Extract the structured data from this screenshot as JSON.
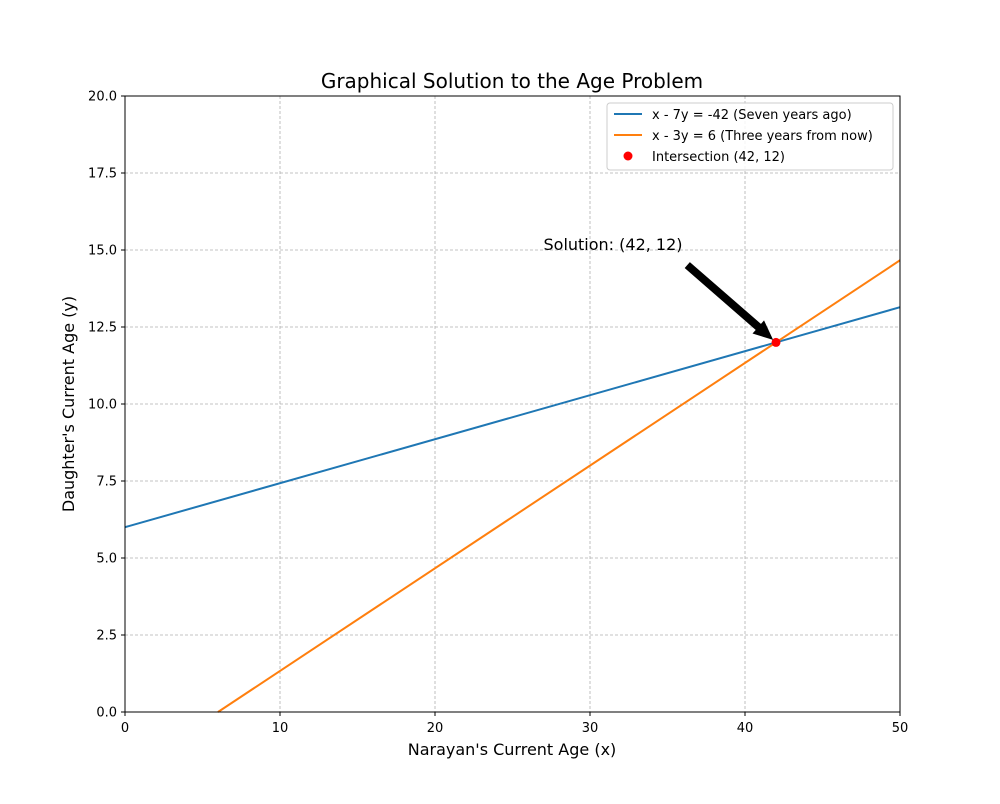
{
  "chart_data": {
    "type": "line",
    "title": "Graphical Solution to the Age Problem",
    "xlabel": "Narayan's Current Age (x)",
    "ylabel": "Daughter's Current Age (y)",
    "xlim": [
      0,
      50
    ],
    "ylim": [
      0,
      20
    ],
    "xticks": [
      0,
      10,
      20,
      30,
      40,
      50
    ],
    "xtick_labels": [
      "0",
      "10",
      "20",
      "30",
      "40",
      "50"
    ],
    "yticks": [
      0,
      2.5,
      5,
      7.5,
      10,
      12.5,
      15,
      17.5,
      20
    ],
    "ytick_labels": [
      "0.0",
      "2.5",
      "5.0",
      "7.5",
      "10.0",
      "12.5",
      "15.0",
      "17.5",
      "20.0"
    ],
    "grid": true,
    "legend_position": "top-right",
    "series": [
      {
        "name": "x - 7y = -42 (Seven years ago)",
        "kind": "line",
        "color": "#1f77b4",
        "x": [
          0,
          50
        ],
        "y": [
          6,
          13.142857
        ]
      },
      {
        "name": "x - 3y = 6 (Three years from now)",
        "kind": "line",
        "color": "#ff7f0e",
        "x": [
          6,
          50
        ],
        "y": [
          0,
          14.666667
        ]
      },
      {
        "name": "Intersection (42, 12)",
        "kind": "scatter",
        "color": "#ff0000",
        "x": [
          42
        ],
        "y": [
          12
        ]
      }
    ],
    "annotation": {
      "text": "Solution: (42, 12)",
      "xy": [
        42,
        12
      ],
      "text_xy": [
        27,
        15
      ],
      "arrow_start": [
        36.3,
        14.5
      ],
      "arrow_color": "#000000"
    }
  }
}
